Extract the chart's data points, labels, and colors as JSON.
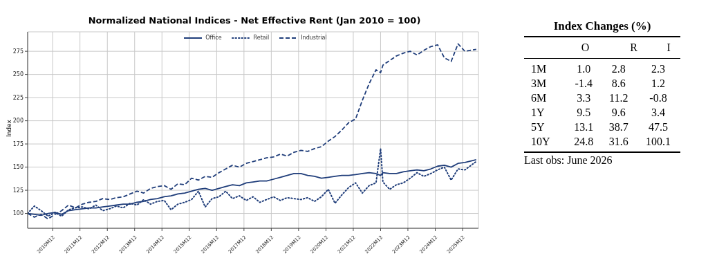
{
  "chart_data": [
    {
      "type": "line",
      "title": "Normalized National Indices - Net Effective Rent (Jan 2010 = 100)",
      "ylabel": "Index",
      "grid": true,
      "legend": "top",
      "x": [
        "2010-01",
        "2010-04",
        "2010-07",
        "2010-10",
        "2011-01",
        "2011-04",
        "2011-07",
        "2011-10",
        "2012-01",
        "2012-04",
        "2012-07",
        "2012-10",
        "2013-01",
        "2013-04",
        "2013-07",
        "2013-10",
        "2014-01",
        "2014-04",
        "2014-07",
        "2014-10",
        "2015-01",
        "2015-04",
        "2015-07",
        "2015-10",
        "2016-01",
        "2016-04",
        "2016-07",
        "2016-10",
        "2017-01",
        "2017-04",
        "2017-07",
        "2017-10",
        "2018-01",
        "2018-04",
        "2018-07",
        "2018-10",
        "2019-01",
        "2019-04",
        "2019-07",
        "2019-10",
        "2020-01",
        "2020-04",
        "2020-07",
        "2020-10",
        "2021-01",
        "2021-04",
        "2021-07",
        "2021-10",
        "2022-01",
        "2022-04",
        "2022-07",
        "2022-10",
        "2022-12",
        "2023-01",
        "2023-04",
        "2023-07",
        "2023-10",
        "2024-01",
        "2024-04",
        "2024-07",
        "2024-10",
        "2025-01",
        "2025-04",
        "2025-07",
        "2025-10",
        "2026-01",
        "2026-06"
      ],
      "xlim": [
        "2010-01",
        "2026-07"
      ],
      "xticks": [
        {
          "value": "2010-12",
          "label": "2010M12"
        },
        {
          "value": "2011-12",
          "label": "2011M12"
        },
        {
          "value": "2012-12",
          "label": "2012M12"
        },
        {
          "value": "2013-12",
          "label": "2013M12"
        },
        {
          "value": "2014-12",
          "label": "2014M12"
        },
        {
          "value": "2015-12",
          "label": "2015M12"
        },
        {
          "value": "2016-12",
          "label": "2016M12"
        },
        {
          "value": "2017-12",
          "label": "2017M12"
        },
        {
          "value": "2018-12",
          "label": "2018M12"
        },
        {
          "value": "2019-12",
          "label": "2019M12"
        },
        {
          "value": "2020-12",
          "label": "2020M12"
        },
        {
          "value": "2021-12",
          "label": "2021M12"
        },
        {
          "value": "2022-12",
          "label": "2022M12"
        },
        {
          "value": "2023-12",
          "label": "2023M12"
        },
        {
          "value": "2024-12",
          "label": "2024M12"
        },
        {
          "value": "2025-12",
          "label": "2025M12"
        }
      ],
      "ylim": [
        84,
        296
      ],
      "yticks": [
        100,
        125,
        150,
        175,
        200,
        225,
        250,
        275
      ],
      "series": [
        {
          "name": "Office",
          "color": "#1f3d7a",
          "line_style": "solid",
          "values": [
            100,
            99,
            98,
            100,
            101,
            99,
            103,
            104,
            105,
            106,
            106,
            107,
            108,
            109,
            110,
            110,
            112,
            113,
            115,
            116,
            118,
            119,
            121,
            122,
            124,
            126,
            127,
            125,
            127,
            129,
            131,
            130,
            133,
            134,
            135,
            135,
            137,
            139,
            141,
            143,
            143,
            141,
            140,
            138,
            139,
            140,
            141,
            141,
            142,
            143,
            144,
            143,
            141,
            144,
            143,
            143,
            145,
            146,
            147,
            146,
            148,
            151,
            152,
            150,
            154,
            155,
            158
          ]
        },
        {
          "name": "Retail",
          "color": "#1f3d7a",
          "line_style": "dotted",
          "values": [
            100,
            108,
            103,
            97,
            101,
            97,
            104,
            106,
            107,
            105,
            109,
            103,
            105,
            108,
            106,
            111,
            109,
            115,
            110,
            113,
            114,
            104,
            110,
            112,
            115,
            124,
            107,
            116,
            118,
            124,
            116,
            119,
            114,
            118,
            112,
            115,
            118,
            114,
            117,
            116,
            115,
            117,
            113,
            118,
            126,
            111,
            120,
            128,
            133,
            122,
            130,
            133,
            170,
            134,
            126,
            131,
            133,
            138,
            144,
            140,
            143,
            147,
            150,
            136,
            148,
            147,
            156
          ]
        },
        {
          "name": "Industrial",
          "color": "#1f3d7a",
          "line_style": "dashed",
          "values": [
            100,
            96,
            99,
            94,
            99,
            103,
            109,
            106,
            110,
            112,
            113,
            116,
            115,
            117,
            118,
            121,
            124,
            122,
            127,
            129,
            130,
            126,
            132,
            131,
            138,
            136,
            140,
            139,
            144,
            148,
            152,
            150,
            154,
            156,
            158,
            160,
            161,
            164,
            162,
            166,
            168,
            167,
            170,
            172,
            178,
            183,
            190,
            198,
            202,
            222,
            240,
            255,
            252,
            260,
            265,
            270,
            273,
            275,
            271,
            276,
            280,
            282,
            268,
            264,
            283,
            275,
            277
          ]
        }
      ]
    },
    {
      "type": "other",
      "title": "Index Changes (%)",
      "categories": [
        "O",
        "R",
        "I"
      ],
      "y_categories": [
        "1M",
        "3M",
        "6M",
        "1Y",
        "5Y",
        "10Y"
      ],
      "cell_labels": [
        [
          "1.0",
          "2.8",
          "2.3"
        ],
        [
          "-1.4",
          "8.6",
          "1.2"
        ],
        [
          "3.3",
          "11.2",
          "-0.8"
        ],
        [
          "9.5",
          "9.6",
          "3.4"
        ],
        [
          "13.1",
          "38.7",
          "47.5"
        ],
        [
          "24.8",
          "31.6",
          "100.1"
        ]
      ],
      "annotations": [
        "Last obs: June 2026"
      ]
    }
  ]
}
